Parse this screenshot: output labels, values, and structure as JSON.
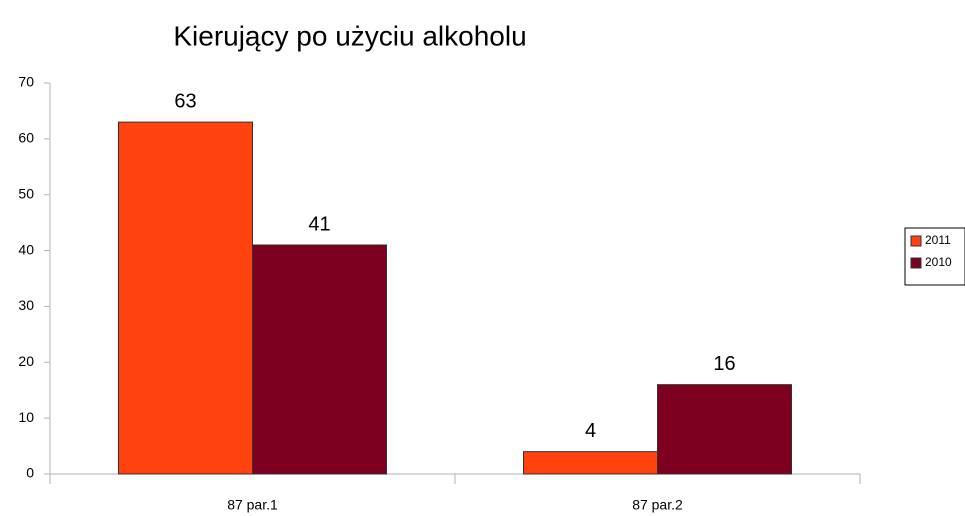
{
  "chart_data": {
    "type": "bar",
    "title": "Kierujący po użyciu alkoholu",
    "categories": [
      "87 par.1",
      "87 par.2"
    ],
    "series": [
      {
        "name": "2011",
        "color": "#ff420e",
        "values": [
          63,
          4
        ]
      },
      {
        "name": "2010",
        "color": "#7e0021",
        "values": [
          41,
          16
        ]
      }
    ],
    "ylim": [
      0,
      70
    ],
    "yticks": [
      0,
      10,
      20,
      30,
      40,
      50,
      60,
      70
    ],
    "grid": false,
    "legend": "right"
  }
}
